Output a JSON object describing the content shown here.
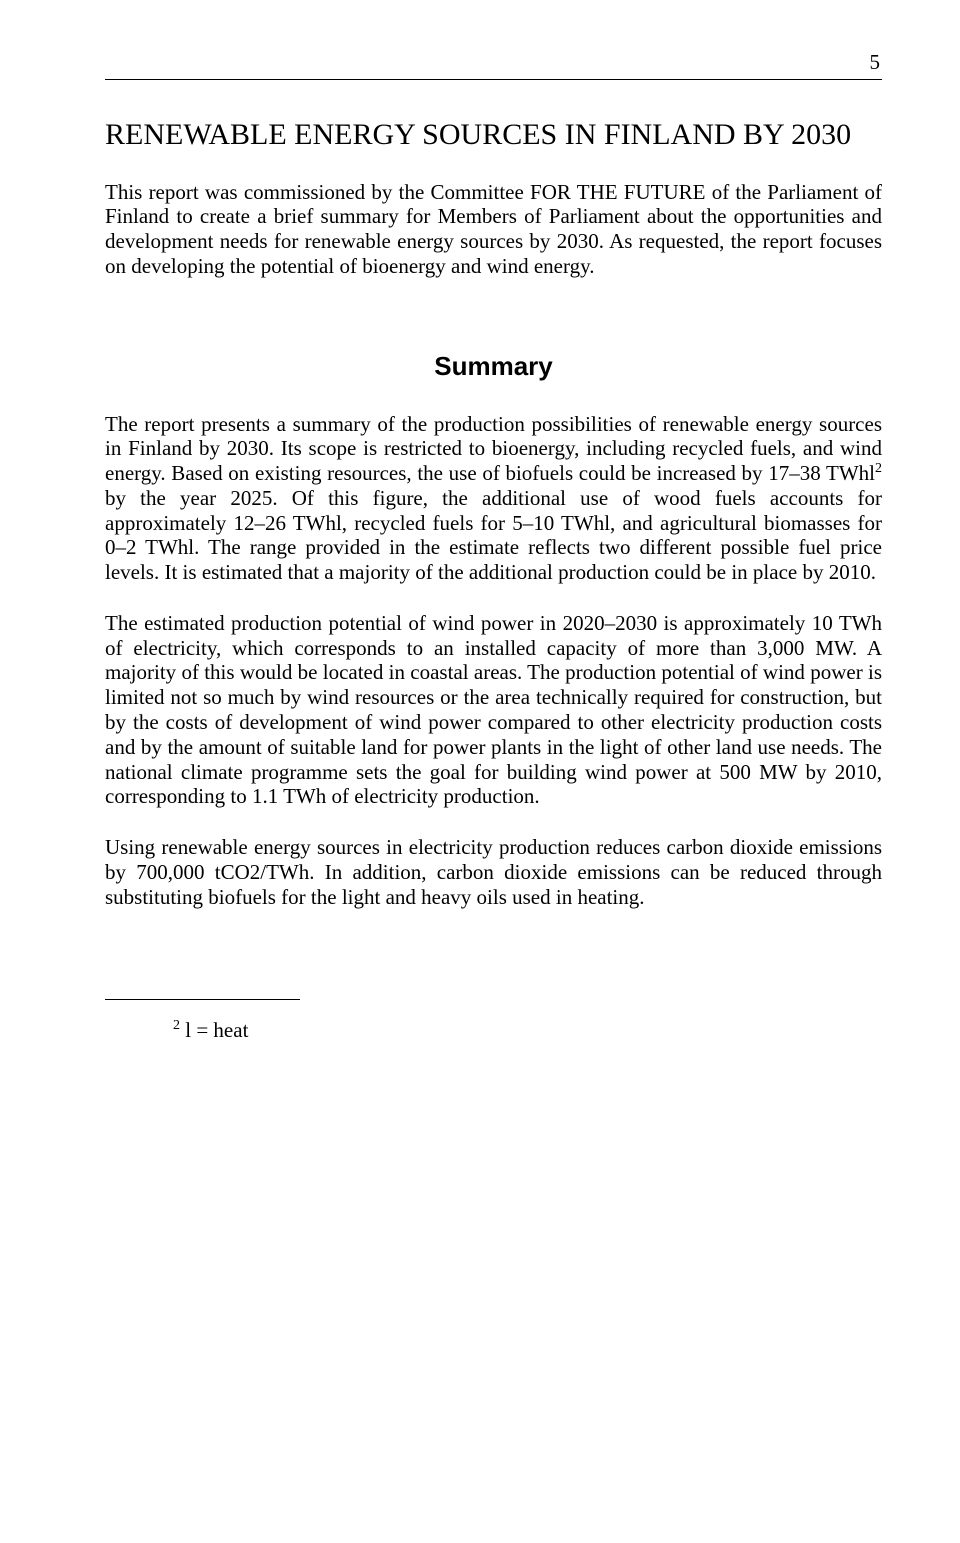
{
  "page_number": "5",
  "title": "RENEWABLE ENERGY SOURCES IN FINLAND BY 2030",
  "intro": "This report was commissioned by the Committee FOR THE FUTURE of the Parliament of Finland to create a brief summary for Members of Parliament about the opportunities and development needs for renewable energy sources by 2030. As requested, the report focuses on developing the potential of bioenergy and wind energy.",
  "summary_heading": "Summary",
  "para1_a": "The report presents a summary of the production possibilities of renewable energy sources in Finland by 2030. Its scope is restricted to bioenergy, including recycled fuels, and wind energy. Based on existing resources, the use of biofuels could be increased by 17–38 TWhl",
  "para1_sup": "2",
  "para1_b": " by the year 2025. Of this figure, the additional use of wood fuels accounts for approximately 12–26 TWhl, recycled fuels for 5–10 TWhl, and agricultural biomasses for 0–2 TWhl. The range provided in the estimate reflects two different possible fuel price levels. It is estimated that a majority of the additional production could be in place by 2010.",
  "para2": "The estimated production potential of wind power in 2020–2030 is approximately 10 TWh of electricity, which corresponds to an installed capacity of more than 3,000 MW. A majority of this would be located in coastal areas. The production potential of wind power is limited not so much by wind resources or the area technically required for construction, but by the costs of development of wind power compared to other electricity production costs and by the amount of suitable land for power plants in the light of other land use needs. The national climate programme sets the goal for building wind power at 500 MW by 2010, corresponding to 1.1 TWh of electricity production.",
  "para3": "Using renewable energy sources in electricity production reduces carbon dioxide emissions by 700,000 tCO2/TWh. In addition, carbon dioxide emissions can be reduced through substituting biofuels for the light and heavy oils used in heating.",
  "footnote_sup": "2",
  "footnote_text": " l = heat"
}
